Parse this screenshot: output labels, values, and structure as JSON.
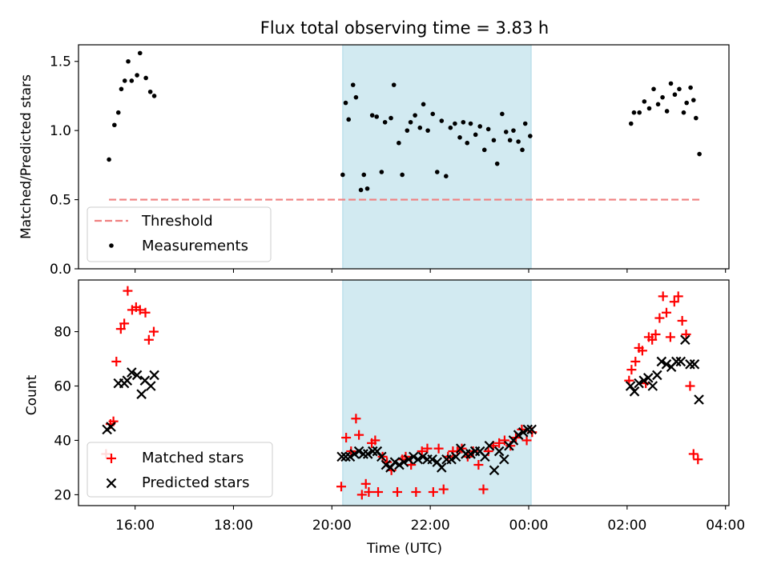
{
  "colors": {
    "band": "#add8e6",
    "threshold": "#f08080",
    "measurement": "#000000",
    "matched": "#ff0000",
    "predicted": "#000000"
  },
  "chart_data": {
    "type": "scatter",
    "title": "Flux total observing time = 3.83 h",
    "xlabel": "Time (UTC)",
    "x_unit": "hours since 00:00 of first night (values >24 are next day)",
    "xlim": [
      14.85,
      28.07
    ],
    "x_ticks": [
      16,
      18,
      20,
      22,
      24,
      26,
      28
    ],
    "x_tick_labels": [
      "16:00",
      "18:00",
      "20:00",
      "22:00",
      "00:00",
      "02:00",
      "04:00"
    ],
    "shaded_interval": [
      20.22,
      24.05
    ],
    "panels": [
      {
        "ylabel": "Matched/Predicted stars",
        "ylim": [
          0.0,
          1.62
        ],
        "y_ticks": [
          0.0,
          0.5,
          1.0,
          1.5
        ],
        "y_tick_labels": [
          "0.0",
          "0.5",
          "1.0",
          "1.5"
        ],
        "legend": {
          "position": "lower left",
          "entries": [
            "Threshold",
            "Measurements"
          ]
        },
        "series": [
          {
            "name": "Threshold",
            "style": "dashed-line",
            "x": [
              15.47,
              27.47
            ],
            "y": [
              0.5,
              0.5
            ]
          },
          {
            "name": "Measurements",
            "style": "dot",
            "x": [
              15.47,
              15.58,
              15.66,
              15.72,
              15.79,
              15.86,
              15.93,
              16.04,
              16.1,
              16.22,
              16.31,
              16.39,
              20.22,
              20.28,
              20.34,
              20.43,
              20.49,
              20.59,
              20.65,
              20.72,
              20.82,
              20.91,
              21.01,
              21.08,
              21.2,
              21.26,
              21.36,
              21.43,
              21.53,
              21.6,
              21.69,
              21.79,
              21.86,
              21.95,
              22.05,
              22.14,
              22.23,
              22.32,
              22.41,
              22.5,
              22.6,
              22.67,
              22.75,
              22.82,
              22.92,
              23.01,
              23.1,
              23.18,
              23.29,
              23.36,
              23.46,
              23.54,
              23.62,
              23.69,
              23.79,
              23.87,
              23.93,
              24.03,
              26.08,
              26.14,
              26.25,
              26.35,
              26.45,
              26.54,
              26.63,
              26.72,
              26.81,
              26.89,
              26.97,
              27.06,
              27.15,
              27.21,
              27.29,
              27.35,
              27.4,
              27.47
            ],
            "y": [
              0.79,
              1.04,
              1.13,
              1.3,
              1.36,
              1.5,
              1.36,
              1.4,
              1.56,
              1.38,
              1.28,
              1.25,
              0.68,
              1.2,
              1.08,
              1.33,
              1.24,
              0.57,
              0.68,
              0.58,
              1.11,
              1.1,
              0.7,
              1.06,
              1.09,
              1.33,
              0.91,
              0.68,
              1.0,
              1.06,
              1.11,
              1.02,
              1.19,
              1.0,
              1.12,
              0.7,
              1.07,
              0.67,
              1.02,
              1.05,
              0.95,
              1.06,
              0.91,
              1.05,
              0.97,
              1.03,
              0.86,
              1.01,
              0.93,
              0.76,
              1.12,
              0.99,
              0.93,
              1.0,
              0.92,
              0.86,
              1.05,
              0.96,
              1.05,
              1.13,
              1.13,
              1.21,
              1.16,
              1.3,
              1.19,
              1.24,
              1.14,
              1.34,
              1.26,
              1.3,
              1.13,
              1.2,
              1.31,
              1.22,
              1.09,
              0.83
            ]
          }
        ]
      },
      {
        "ylabel": "Count",
        "ylim": [
          16,
          99
        ],
        "y_ticks": [
          20,
          40,
          60,
          80
        ],
        "y_tick_labels": [
          "20",
          "40",
          "60",
          "80"
        ],
        "legend": {
          "position": "lower left",
          "entries": [
            "Matched stars",
            "Predicted stars"
          ]
        },
        "series": [
          {
            "name": "Matched stars",
            "style": "plus",
            "x": [
              15.41,
              15.5,
              15.56,
              15.62,
              15.71,
              15.78,
              15.85,
              15.94,
              16.02,
              16.1,
              16.21,
              16.28,
              16.38,
              20.19,
              20.29,
              20.39,
              20.49,
              20.55,
              20.61,
              20.69,
              20.75,
              20.81,
              20.88,
              20.94,
              21.03,
              21.12,
              21.21,
              21.33,
              21.43,
              21.5,
              21.61,
              21.71,
              21.83,
              21.94,
              22.06,
              22.17,
              22.27,
              22.36,
              22.46,
              22.55,
              22.64,
              22.76,
              22.87,
              22.98,
              23.08,
              23.18,
              23.28,
              23.4,
              23.51,
              23.63,
              23.74,
              23.86,
              23.96,
              24.07,
              26.04,
              26.09,
              26.17,
              26.24,
              26.31,
              26.38,
              26.44,
              26.51,
              26.58,
              26.66,
              26.73,
              26.8,
              26.88,
              26.96,
              27.04,
              27.12,
              27.2,
              27.28,
              27.35,
              27.44
            ],
            "y": [
              35,
              46,
              47,
              69,
              81,
              83,
              95,
              88,
              89,
              88,
              87,
              77,
              80,
              23,
              41,
              36,
              48,
              42,
              20,
              24,
              21,
              39,
              40,
              21,
              34,
              32,
              29,
              21,
              33,
              34,
              31,
              21,
              36,
              37,
              21,
              37,
              22,
              34,
              36,
              36,
              37,
              34,
              36,
              31,
              22,
              36,
              38,
              39,
              40,
              38,
              41,
              44,
              40,
              43,
              62,
              66,
              69,
              74,
              73,
              61,
              78,
              77,
              79,
              85,
              93,
              87,
              78,
              91,
              93,
              84,
              79,
              60,
              35,
              33
            ]
          },
          {
            "name": "Predicted stars",
            "style": "x",
            "x": [
              15.43,
              15.51,
              15.66,
              15.78,
              15.84,
              15.93,
              16.04,
              16.13,
              16.2,
              16.32,
              16.39,
              20.2,
              20.28,
              20.37,
              20.46,
              20.55,
              20.64,
              20.73,
              20.83,
              20.92,
              21.01,
              21.1,
              21.19,
              21.28,
              21.37,
              21.46,
              21.56,
              21.66,
              21.75,
              21.85,
              21.94,
              22.04,
              22.14,
              22.23,
              22.33,
              22.43,
              22.52,
              22.62,
              22.72,
              22.82,
              22.91,
              23.01,
              23.11,
              23.2,
              23.3,
              23.4,
              23.5,
              23.6,
              23.69,
              23.79,
              23.89,
              23.98,
              24.06,
              26.07,
              26.15,
              26.24,
              26.34,
              26.43,
              26.52,
              26.61,
              26.7,
              26.8,
              26.9,
              27.0,
              27.09,
              27.18,
              27.28,
              27.37,
              27.46
            ],
            "y": [
              44,
              45,
              61,
              61,
              62,
              65,
              64,
              57,
              62,
              60,
              64,
              34,
              34,
              34,
              35,
              36,
              35,
              35,
              36,
              36,
              34,
              31,
              30,
              32,
              31,
              32,
              33,
              34,
              33,
              34,
              33,
              33,
              32,
              30,
              33,
              33,
              34,
              37,
              35,
              35,
              36,
              36,
              34,
              38,
              29,
              36,
              33,
              38,
              40,
              42,
              43,
              44,
              44,
              60,
              58,
              61,
              62,
              63,
              60,
              64,
              69,
              68,
              67,
              69,
              69,
              77,
              68,
              68,
              55
            ]
          }
        ]
      }
    ]
  }
}
